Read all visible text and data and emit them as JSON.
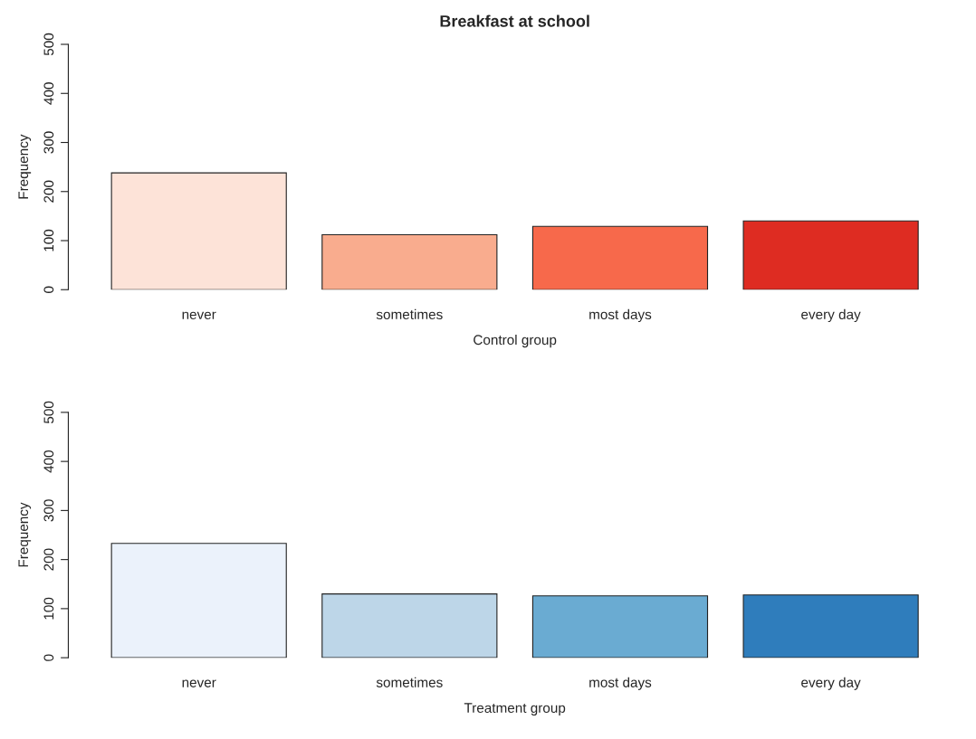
{
  "chart_data": [
    {
      "type": "bar",
      "title": "Breakfast at school",
      "xlabel": "Control group",
      "ylabel": "Frequency",
      "categories": [
        "never",
        "sometimes",
        "most days",
        "every day"
      ],
      "values": [
        238,
        112,
        129,
        140
      ],
      "colors": [
        "#fde3d8",
        "#f9ac8e",
        "#f7694b",
        "#de2c22"
      ],
      "ylim": [
        0,
        500
      ],
      "yticks": [
        0,
        100,
        200,
        300,
        400,
        500
      ],
      "grid": false,
      "legend": false
    },
    {
      "type": "bar",
      "xlabel": "Treatment group",
      "ylabel": "Frequency",
      "categories": [
        "never",
        "sometimes",
        "most days",
        "every day"
      ],
      "values": [
        233,
        130,
        126,
        128
      ],
      "colors": [
        "#ebf2fb",
        "#bdd6e8",
        "#6aabd2",
        "#2f7dbc"
      ],
      "ylim": [
        0,
        500
      ],
      "yticks": [
        0,
        100,
        200,
        300,
        400,
        500
      ],
      "grid": false,
      "legend": false
    }
  ]
}
